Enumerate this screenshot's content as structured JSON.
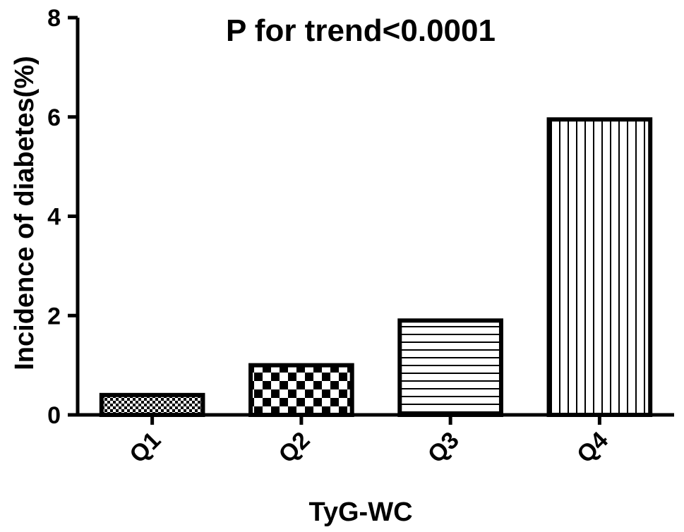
{
  "chart_data": {
    "type": "bar",
    "title": "P for trend<0.0001",
    "xlabel": "TyG-WC",
    "ylabel": "Incidence of diabetes(%)",
    "categories": [
      "Q1",
      "Q2",
      "Q3",
      "Q4"
    ],
    "values": [
      0.4,
      1.0,
      1.9,
      5.95
    ],
    "ylim": [
      0,
      8
    ],
    "yticks": [
      "0",
      "2",
      "4",
      "6",
      "8"
    ],
    "bar_fill_patterns": [
      "fine-check",
      "checkerboard",
      "horizontal-stripes",
      "vertical-stripes"
    ],
    "grid": false,
    "legend": "none",
    "colors": {
      "stroke": "#000000",
      "fill": "#ffffff"
    }
  }
}
